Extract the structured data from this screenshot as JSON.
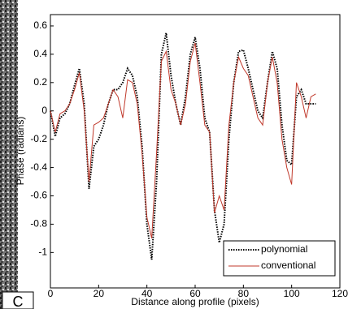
{
  "chart_data": {
    "type": "line",
    "panel_label": "C",
    "x_label": "Distance along profile (pixels)",
    "y_label": "Phase (radians)",
    "x": [
      0,
      2,
      4,
      6,
      8,
      10,
      12,
      14,
      16,
      18,
      20,
      22,
      24,
      26,
      28,
      30,
      32,
      34,
      36,
      38,
      40,
      42,
      44,
      46,
      48,
      50,
      52,
      54,
      56,
      58,
      60,
      62,
      64,
      66,
      68,
      70,
      72,
      74,
      76,
      78,
      80,
      82,
      84,
      86,
      88,
      90,
      92,
      94,
      96,
      98,
      100,
      102,
      104,
      106,
      108,
      110
    ],
    "series": [
      {
        "name": "polynomial",
        "color": "#000000",
        "dash": "dotted",
        "values": [
          0,
          -0.18,
          -0.05,
          -0.02,
          0.05,
          0.18,
          0.3,
          0.05,
          -0.55,
          -0.25,
          -0.2,
          -0.1,
          0.05,
          0.15,
          0.15,
          0.2,
          0.3,
          0.25,
          0.1,
          -0.25,
          -0.8,
          -1.05,
          -0.5,
          0.4,
          0.55,
          0.25,
          0.05,
          -0.1,
          0.1,
          0.4,
          0.52,
          0.3,
          -0.05,
          -0.15,
          -0.7,
          -0.93,
          -0.8,
          -0.2,
          0.2,
          0.42,
          0.43,
          0.3,
          0.15,
          0,
          -0.05,
          0.2,
          0.42,
          0.3,
          -0.1,
          -0.35,
          -0.38,
          0.1,
          0.15,
          0.05,
          0.05,
          0.05
        ]
      },
      {
        "name": "conventional",
        "color": "#c0392b",
        "dash": "solid",
        "values": [
          0,
          -0.15,
          -0.02,
          0,
          0.05,
          0.15,
          0.27,
          0,
          -0.5,
          -0.1,
          -0.08,
          -0.05,
          0.05,
          0.15,
          0.1,
          -0.05,
          0.22,
          0.2,
          0.05,
          -0.3,
          -0.75,
          -0.9,
          -0.3,
          0.35,
          0.42,
          0.15,
          0.05,
          -0.1,
          0.05,
          0.35,
          0.48,
          0.2,
          -0.1,
          -0.15,
          -0.72,
          -0.6,
          -0.7,
          -0.1,
          0.2,
          0.38,
          0.3,
          0.25,
          0.1,
          -0.05,
          -0.1,
          0.2,
          0.38,
          0.2,
          -0.2,
          -0.4,
          -0.52,
          0.2,
          0.1,
          -0.05,
          0.1,
          0.12
        ]
      }
    ],
    "xlim": [
      0,
      120
    ],
    "xticks": [
      0,
      20,
      40,
      60,
      80,
      100,
      120
    ],
    "ylim": [
      -1.25,
      0.68
    ],
    "yticks": [
      0.6,
      0.4,
      0.2,
      0,
      -0.2,
      -0.4,
      -0.6,
      -0.8,
      -1
    ],
    "legend": "lower right"
  }
}
